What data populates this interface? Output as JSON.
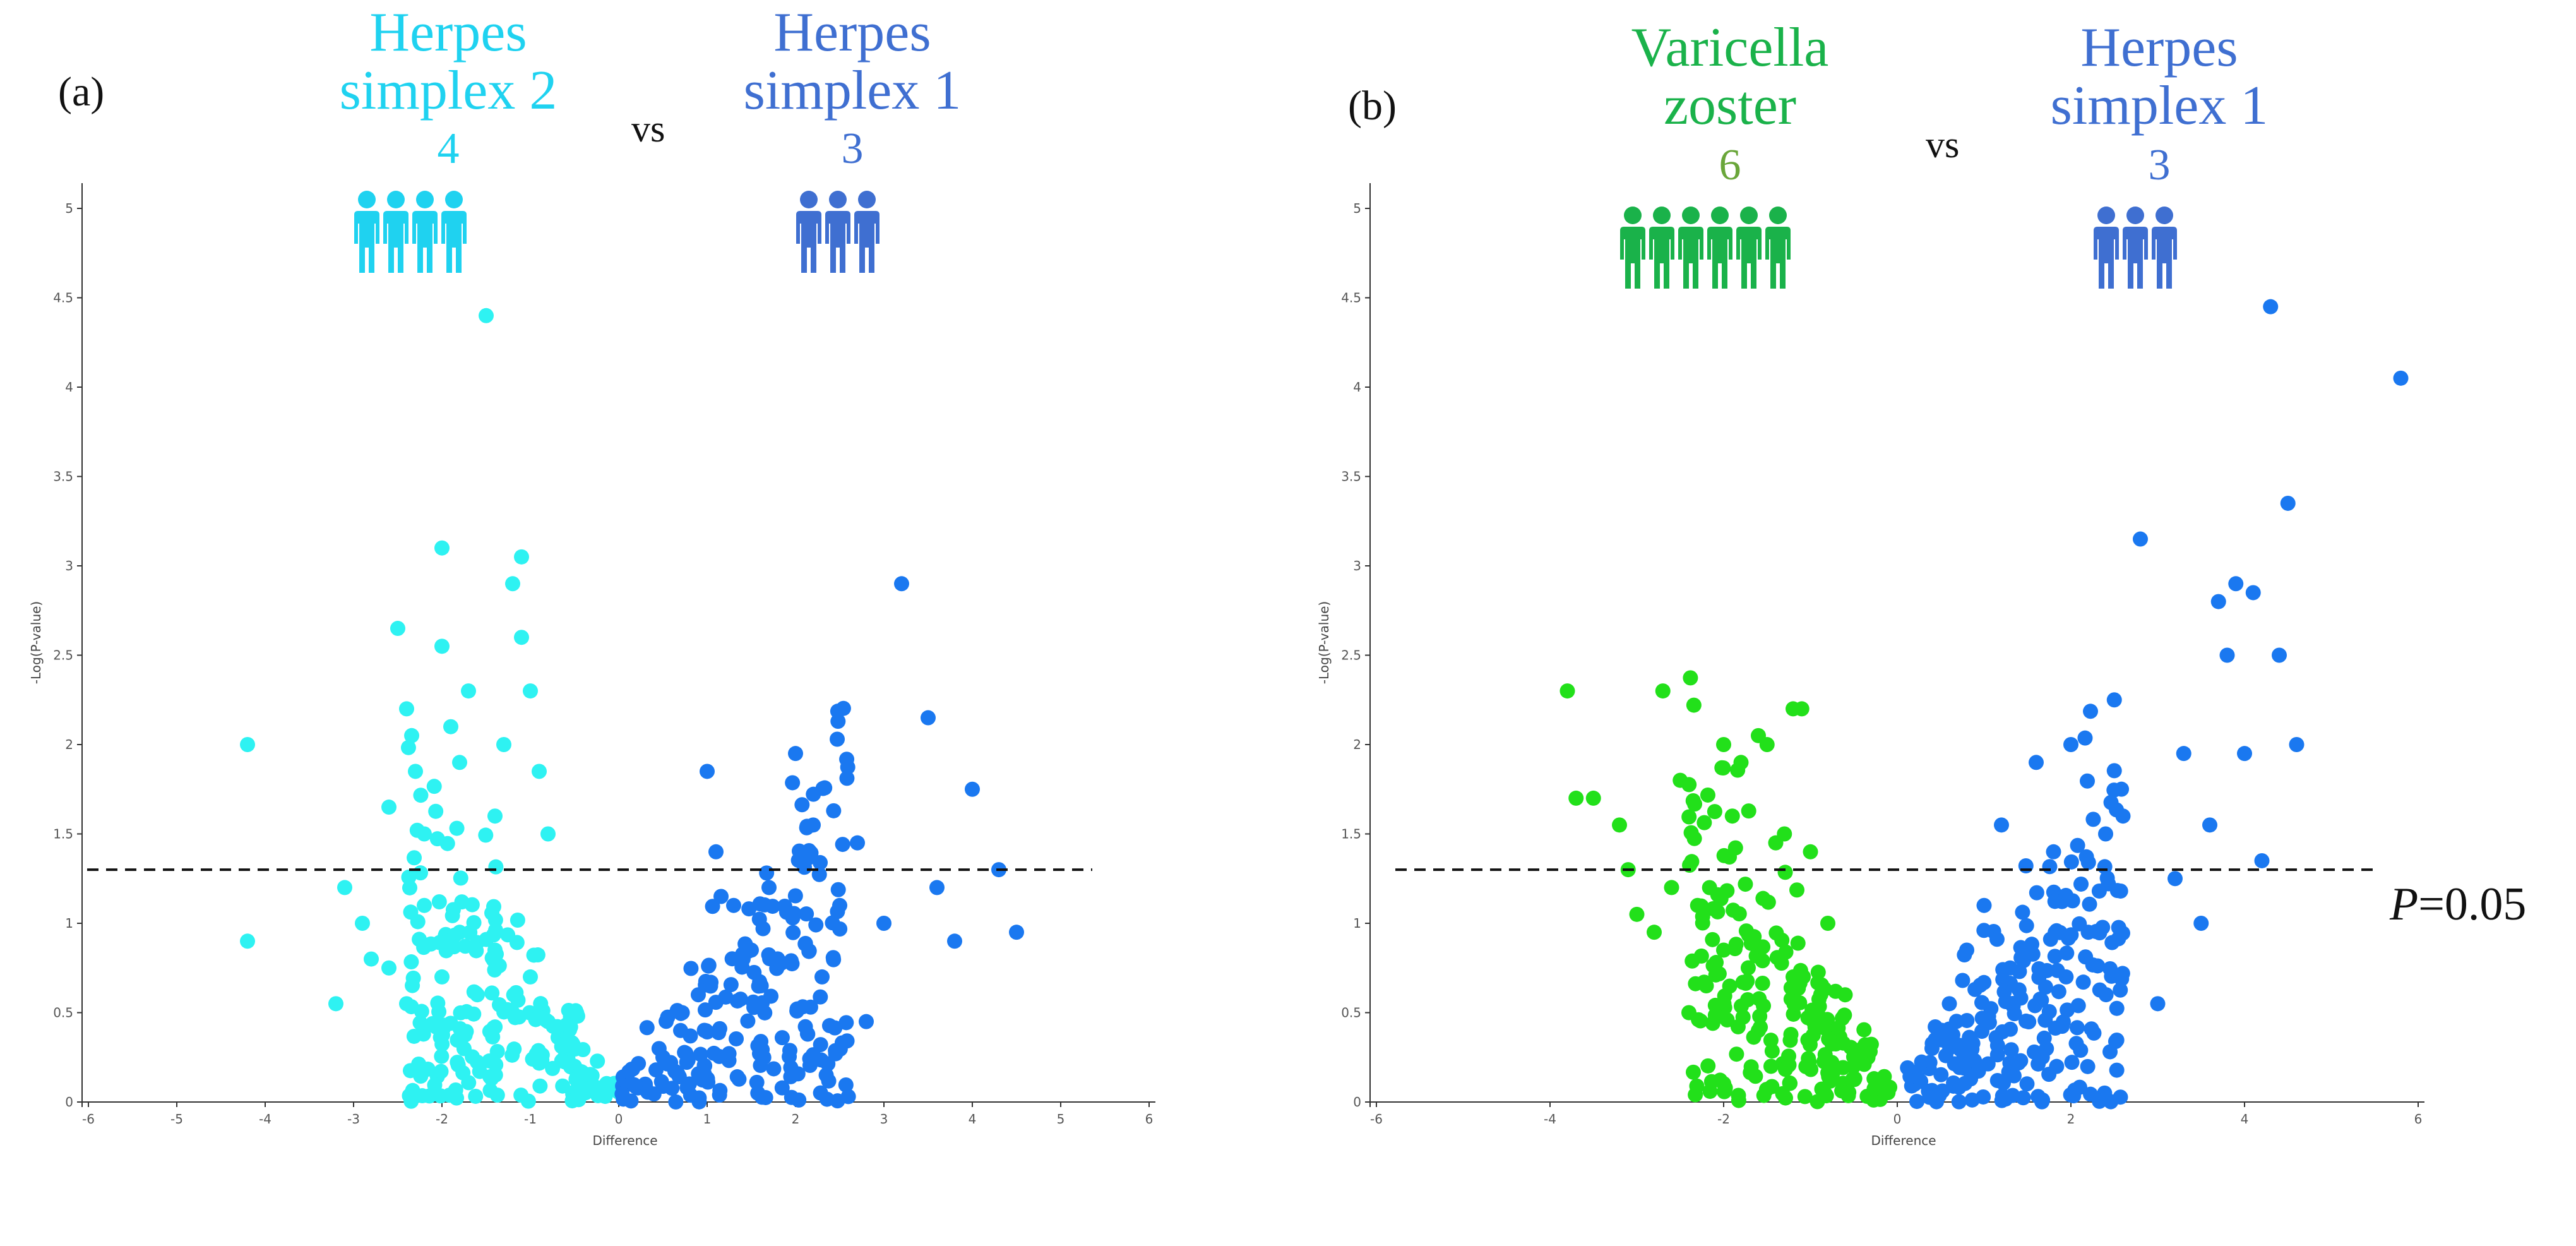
{
  "figure": {
    "threshold_label": "P=0.05",
    "threshold_p": "P",
    "threshold_value": "=0.05"
  },
  "colors": {
    "hsv2": "#1fd2f0",
    "hsv1": "#3f6fd1",
    "vzv": "#1ab24a",
    "hsv2_points": "#2ef2f2",
    "hsv1_points": "#1a78f0",
    "vzv_points": "#22e01a",
    "threshold_line": "#111111",
    "axis": "#333333"
  },
  "panels": {
    "a": {
      "label": "(a)",
      "left_group": {
        "name_line1": "Herpes",
        "name_line2": "simplex 2",
        "count": "4",
        "icon": "person-group-icon"
      },
      "vs": "vs",
      "right_group": {
        "name_line1": "Herpes",
        "name_line2": "simplex 1",
        "count": "3",
        "icon": "person-group-icon"
      }
    },
    "b": {
      "label": "(b)",
      "left_group": {
        "name_line1": "Varicella",
        "name_line2": "zoster",
        "count": "6",
        "icon": "person-group-icon"
      },
      "vs": "vs",
      "right_group": {
        "name_line1": "Herpes",
        "name_line2": "simplex 1",
        "count": "3",
        "icon": "person-group-icon"
      }
    }
  },
  "chart_data": [
    {
      "type": "scatter",
      "title": "",
      "xlabel": "Difference",
      "ylabel": "-Log(P-value)",
      "xlim": [
        -6,
        6
      ],
      "ylim": [
        0,
        5
      ],
      "xticks": [
        -6,
        -5,
        -4,
        -3,
        -2,
        -1,
        0,
        1,
        2,
        3,
        4,
        5,
        6
      ],
      "yticks": [
        0,
        0.5,
        1,
        1.5,
        2,
        2.5,
        3,
        3.5,
        4,
        4.5,
        5
      ],
      "threshold_y": 1.3,
      "grid": false,
      "series": [
        {
          "name": "Herpes simplex 2 (higher)",
          "points": [
            [
              -4.2,
              2.0
            ],
            [
              -4.2,
              0.9
            ],
            [
              -3.2,
              0.55
            ],
            [
              -3.1,
              1.2
            ],
            [
              -2.9,
              1.0
            ],
            [
              -2.8,
              0.8
            ],
            [
              -2.6,
              1.65
            ],
            [
              -2.5,
              2.65
            ],
            [
              -2.4,
              2.2
            ],
            [
              -2.3,
              1.85
            ],
            [
              -2.2,
              1.5
            ],
            [
              -2.0,
              3.1
            ],
            [
              -2.0,
              2.55
            ],
            [
              -1.9,
              2.1
            ],
            [
              -1.8,
              1.9
            ],
            [
              -1.7,
              2.3
            ],
            [
              -1.5,
              4.4
            ],
            [
              -1.4,
              1.6
            ],
            [
              -1.3,
              2.0
            ],
            [
              -1.2,
              2.9
            ],
            [
              -1.1,
              3.05
            ],
            [
              -1.1,
              2.6
            ],
            [
              -1.0,
              2.3
            ],
            [
              -0.9,
              1.85
            ],
            [
              -0.8,
              1.5
            ],
            [
              -2.6,
              0.75
            ],
            [
              -2.4,
              0.55
            ],
            [
              -2.2,
              1.1
            ],
            [
              -2.0,
              0.7
            ],
            [
              -1.8,
              0.95
            ],
            [
              -1.6,
              0.6
            ],
            [
              -1.4,
              0.85
            ],
            [
              -1.2,
              0.5
            ],
            [
              -1.0,
              0.7
            ],
            [
              -0.8,
              0.45
            ],
            [
              -0.6,
              0.3
            ],
            [
              -0.5,
              0.2
            ],
            [
              -0.3,
              0.1
            ]
          ]
        },
        {
          "name": "Herpes simplex 1 (higher)",
          "points": [
            [
              0.3,
              0.1
            ],
            [
              0.5,
              0.25
            ],
            [
              0.7,
              0.4
            ],
            [
              0.9,
              0.6
            ],
            [
              1.0,
              1.85
            ],
            [
              1.1,
              1.4
            ],
            [
              1.3,
              1.1
            ],
            [
              1.5,
              0.85
            ],
            [
              1.7,
              1.2
            ],
            [
              2.0,
              1.95
            ],
            [
              2.2,
              1.55
            ],
            [
              2.3,
              0.7
            ],
            [
              2.5,
              1.1
            ],
            [
              2.7,
              1.45
            ],
            [
              2.8,
              0.45
            ],
            [
              3.0,
              1.0
            ],
            [
              3.2,
              2.9
            ],
            [
              3.5,
              2.15
            ],
            [
              3.6,
              1.2
            ],
            [
              3.8,
              0.9
            ],
            [
              4.0,
              1.75
            ],
            [
              4.3,
              1.3
            ],
            [
              4.5,
              0.95
            ]
          ]
        }
      ]
    },
    {
      "type": "scatter",
      "title": "",
      "xlabel": "Difference",
      "ylabel": "-Log(P-value)",
      "xlim": [
        -6,
        6
      ],
      "ylim": [
        0,
        5
      ],
      "xticks": [
        -6,
        -4,
        -2,
        0,
        2,
        4,
        6
      ],
      "yticks": [
        0,
        0.5,
        1,
        1.5,
        2,
        2.5,
        3,
        3.5,
        4,
        4.5,
        5
      ],
      "threshold_y": 1.3,
      "grid": false,
      "series": [
        {
          "name": "Varicella zoster (higher)",
          "points": [
            [
              -3.8,
              2.3
            ],
            [
              -3.7,
              1.7
            ],
            [
              -3.5,
              1.7
            ],
            [
              -3.2,
              1.55
            ],
            [
              -3.1,
              1.3
            ],
            [
              -3.0,
              1.05
            ],
            [
              -2.8,
              0.95
            ],
            [
              -2.7,
              2.3
            ],
            [
              -2.6,
              1.2
            ],
            [
              -2.5,
              1.8
            ],
            [
              -2.3,
              1.1
            ],
            [
              -2.2,
              0.65
            ],
            [
              -2.0,
              2.0
            ],
            [
              -1.9,
              1.6
            ],
            [
              -1.8,
              1.9
            ],
            [
              -1.6,
              2.05
            ],
            [
              -1.5,
              2.0
            ],
            [
              -1.4,
              1.45
            ],
            [
              -1.3,
              1.5
            ],
            [
              -1.2,
              2.2
            ],
            [
              -1.1,
              2.2
            ],
            [
              -1.0,
              1.4
            ],
            [
              -0.8,
              1.0
            ],
            [
              -0.6,
              0.6
            ],
            [
              -0.4,
              0.3
            ],
            [
              -0.2,
              0.1
            ],
            [
              -2.4,
              0.5
            ],
            [
              -2.0,
              0.85
            ],
            [
              -1.6,
              0.4
            ],
            [
              -1.2,
              0.7
            ]
          ]
        },
        {
          "name": "Herpes simplex 1 (higher)",
          "points": [
            [
              0.2,
              0.1
            ],
            [
              0.4,
              0.3
            ],
            [
              0.6,
              0.55
            ],
            [
              0.8,
              0.85
            ],
            [
              1.0,
              1.1
            ],
            [
              1.2,
              1.55
            ],
            [
              1.3,
              0.75
            ],
            [
              1.6,
              1.9
            ],
            [
              1.8,
              1.4
            ],
            [
              2.0,
              2.0
            ],
            [
              2.2,
              0.95
            ],
            [
              2.4,
              1.5
            ],
            [
              2.5,
              2.25
            ],
            [
              2.6,
              1.6
            ],
            [
              2.8,
              3.15
            ],
            [
              3.0,
              0.55
            ],
            [
              3.2,
              1.25
            ],
            [
              3.3,
              1.95
            ],
            [
              3.5,
              1.0
            ],
            [
              3.6,
              1.55
            ],
            [
              3.7,
              2.8
            ],
            [
              3.8,
              2.5
            ],
            [
              3.9,
              2.9
            ],
            [
              4.0,
              1.95
            ],
            [
              4.1,
              2.85
            ],
            [
              4.2,
              1.35
            ],
            [
              4.3,
              4.45
            ],
            [
              4.4,
              2.5
            ],
            [
              4.5,
              3.35
            ],
            [
              4.6,
              2.0
            ],
            [
              5.8,
              4.05
            ]
          ]
        }
      ]
    }
  ]
}
